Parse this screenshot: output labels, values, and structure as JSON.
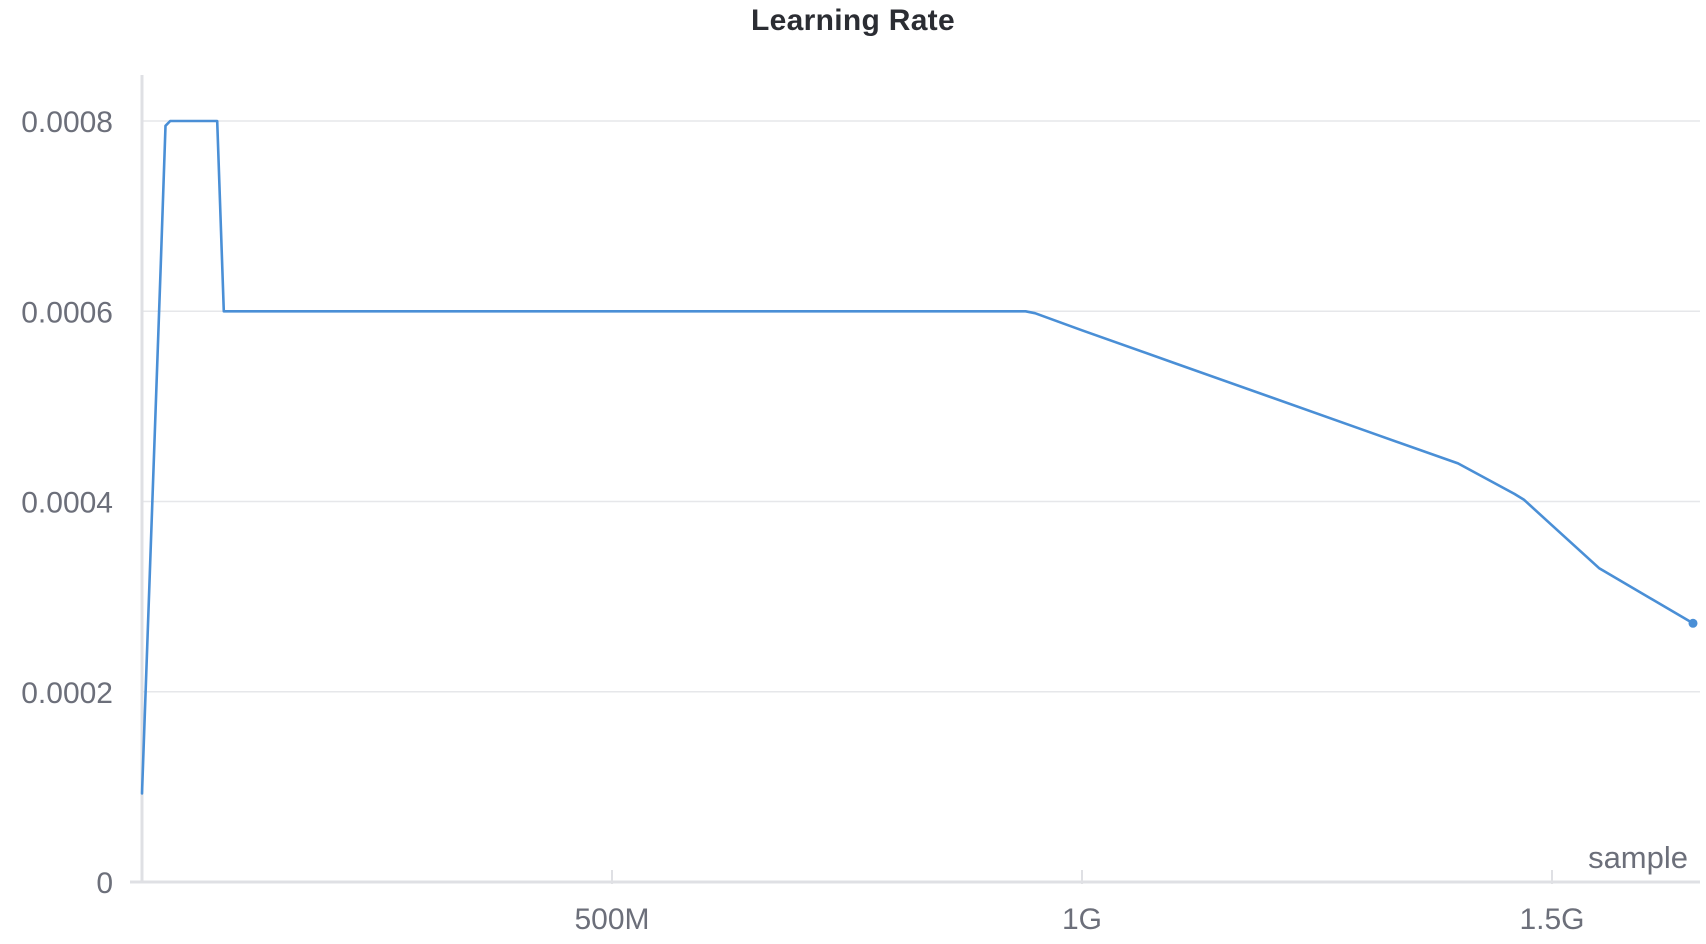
{
  "chart_data": {
    "type": "line",
    "title": "Learning Rate",
    "xlabel": "sample",
    "ylabel": "",
    "xlim": [
      0,
      1650000000
    ],
    "ylim": [
      0,
      0.00085
    ],
    "x_ticks": [
      {
        "value": 500000000,
        "label": "500M"
      },
      {
        "value": 1000000000,
        "label": "1G"
      },
      {
        "value": 1500000000,
        "label": "1.5G"
      }
    ],
    "y_ticks": [
      {
        "value": 0,
        "label": "0"
      },
      {
        "value": 0.0002,
        "label": "0.0002"
      },
      {
        "value": 0.0004,
        "label": "0.0004"
      },
      {
        "value": 0.0006,
        "label": "0.0006"
      },
      {
        "value": 0.0008,
        "label": "0.0008"
      }
    ],
    "grid": true,
    "line_color": "#4a8fd6",
    "series": [
      {
        "x": [
          0,
          20000000,
          25000000,
          30000000,
          80000000,
          87000000,
          500000000,
          940000000,
          950000000,
          1000000000,
          1100000000,
          1200000000,
          1300000000,
          1400000000,
          1460000000,
          1470000000,
          1500000000,
          1550000000,
          1650000000
        ],
        "values": [
          9.3e-05,
          0.00065,
          0.000795,
          0.0008,
          0.0008,
          0.0006,
          0.0006,
          0.0006,
          0.000598,
          0.00058,
          0.000545,
          0.00051,
          0.000475,
          0.00044,
          0.000408,
          0.000402,
          0.000375,
          0.00033,
          0.000272
        ]
      }
    ]
  }
}
